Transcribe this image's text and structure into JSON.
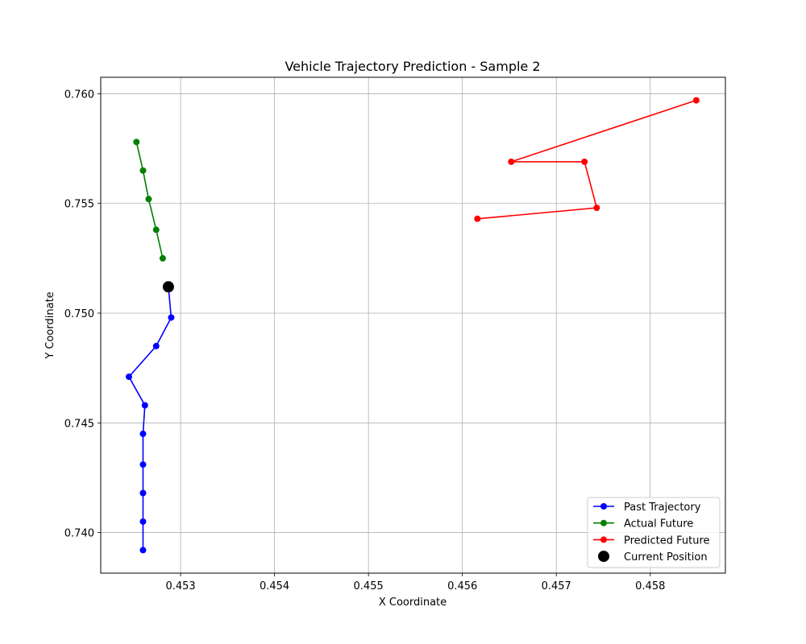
{
  "chart_data": {
    "type": "scatter",
    "title": "Vehicle Trajectory Prediction - Sample 2",
    "xlabel": "X Coordinate",
    "ylabel": "Y Coordinate",
    "xlim": [
      0.45215,
      0.4588
    ],
    "ylim": [
      0.73815,
      0.76075
    ],
    "xticks": [
      0.453,
      0.454,
      0.455,
      0.456,
      0.457,
      0.458
    ],
    "xtick_labels": [
      "0.453",
      "0.454",
      "0.455",
      "0.456",
      "0.457",
      "0.458"
    ],
    "yticks": [
      0.74,
      0.745,
      0.75,
      0.755,
      0.76
    ],
    "ytick_labels": [
      "0.740",
      "0.745",
      "0.750",
      "0.755",
      "0.760"
    ],
    "grid": true,
    "legend_position": "lower-right",
    "series": [
      {
        "name": "Past Trajectory",
        "color": "#0000ff",
        "style": "line-marker",
        "x": [
          0.4526,
          0.4526,
          0.4526,
          0.4526,
          0.4526,
          0.45262,
          0.45245,
          0.45274,
          0.4529,
          0.45287
        ],
        "y": [
          0.7392,
          0.7405,
          0.7418,
          0.7431,
          0.7445,
          0.7458,
          0.7471,
          0.7485,
          0.7498,
          0.7512
        ]
      },
      {
        "name": "Actual Future",
        "color": "#008000",
        "style": "line-marker",
        "x": [
          0.45281,
          0.45274,
          0.45266,
          0.4526,
          0.45253
        ],
        "y": [
          0.7525,
          0.7538,
          0.7552,
          0.7565,
          0.7578
        ]
      },
      {
        "name": "Predicted Future",
        "color": "#ff0000",
        "style": "line-marker",
        "x": [
          0.45616,
          0.45743,
          0.4573,
          0.45652,
          0.45849
        ],
        "y": [
          0.7543,
          0.7548,
          0.7569,
          0.7569,
          0.7597
        ]
      },
      {
        "name": "Current Position",
        "color": "#000000",
        "style": "marker",
        "x": [
          0.45287
        ],
        "y": [
          0.7512
        ]
      }
    ]
  }
}
